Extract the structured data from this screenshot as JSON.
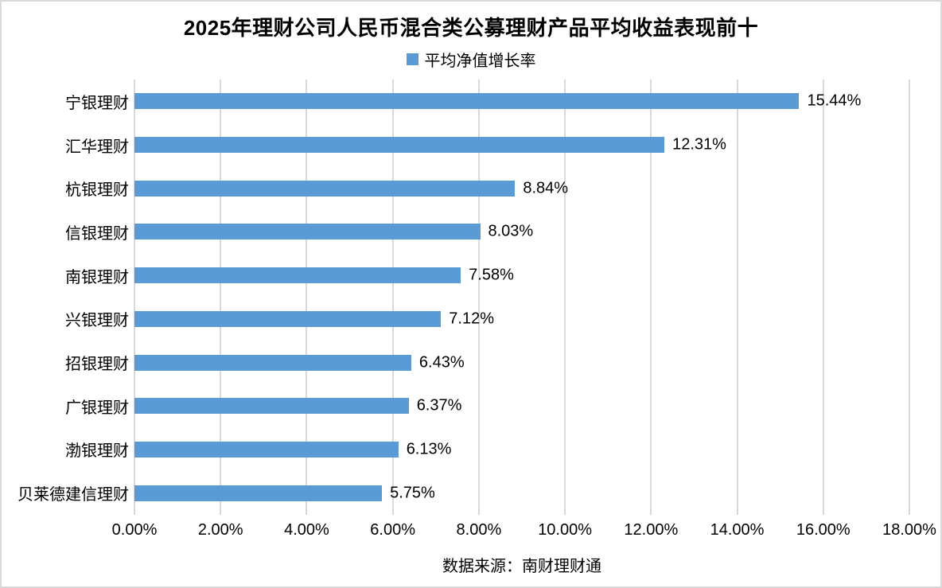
{
  "chart_data": {
    "type": "bar",
    "orientation": "horizontal",
    "title": "2025年理财公司人民币混合类公募理财产品平均收益表现前十",
    "series_name": "平均净值增长率",
    "legend": [
      "平均净值增长率"
    ],
    "legend_position": "top",
    "categories": [
      "宁银理财",
      "汇华理财",
      "杭银理财",
      "信银理财",
      "南银理财",
      "兴银理财",
      "招银理财",
      "广银理财",
      "渤银理财",
      "贝莱德建信理财"
    ],
    "values": [
      15.44,
      12.31,
      8.84,
      8.03,
      7.58,
      7.12,
      6.43,
      6.37,
      6.13,
      5.75
    ],
    "value_labels": [
      "15.44%",
      "12.31%",
      "8.84%",
      "8.03%",
      "7.58%",
      "7.12%",
      "6.43%",
      "6.37%",
      "6.13%",
      "5.75%"
    ],
    "x_ticks": [
      "0.00%",
      "2.00%",
      "4.00%",
      "6.00%",
      "8.00%",
      "10.00%",
      "12.00%",
      "14.00%",
      "16.00%",
      "18.00%"
    ],
    "xlim": [
      0,
      18
    ],
    "xlabel": "",
    "ylabel": "",
    "grid": true,
    "source": "数据来源：南财理财通"
  },
  "colors": {
    "bar": "#5B9BD5",
    "gridline": "#D9D9D9",
    "frame_border": "#D9D9D9",
    "text": "#000000",
    "background": "#FFFFFF"
  }
}
